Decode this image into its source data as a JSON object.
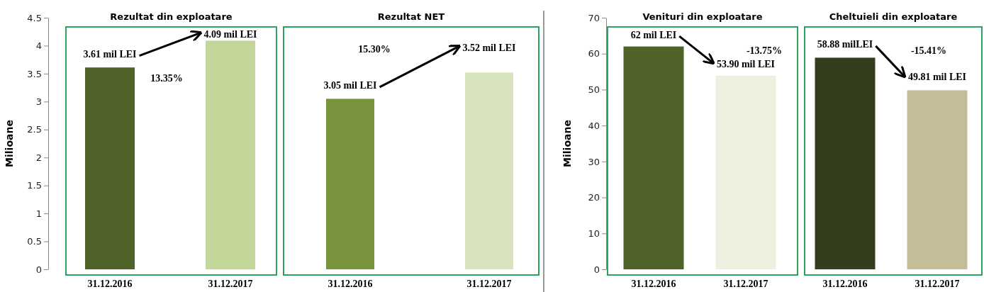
{
  "chart_data": [
    {
      "type": "bar",
      "title": "Rezultat din exploatare",
      "ylabel": "Milioane",
      "categories": [
        "31.12.2016",
        "31.12.2017"
      ],
      "values": [
        3.61,
        4.09
      ],
      "colors": [
        "#4f6228",
        "#c4d79b"
      ],
      "value_labels": [
        "3.61 mil LEI",
        "4.09 mil LEI"
      ],
      "ylim": [
        0,
        4.5
      ],
      "yticks": [
        0,
        0.5,
        1,
        1.5,
        2,
        2.5,
        3,
        3.5,
        4,
        4.5
      ],
      "annotations": [
        "13.35%"
      ]
    },
    {
      "type": "bar",
      "title": "Rezultat NET",
      "categories": [
        "31.12.2016",
        "31.12.2017"
      ],
      "values": [
        3.05,
        3.52
      ],
      "colors": [
        "#77933c",
        "#d7e4bd"
      ],
      "value_labels": [
        "3.05 mil LEI",
        "3.52 mil LEI"
      ],
      "ylim": [
        0,
        4.5
      ],
      "tick_labels": "x",
      "annotations": [
        "15.30%"
      ]
    },
    {
      "type": "bar",
      "title": "Venituri din exploatare",
      "ylabel": "Milioane",
      "categories": [
        "31.12.2016",
        "31.12.2017"
      ],
      "values": [
        62,
        53.9
      ],
      "colors": [
        "#4f6228",
        "#ebf1de"
      ],
      "value_labels": [
        "62 mil LEI",
        "53.90 mil LEI"
      ],
      "ylim": [
        0,
        70
      ],
      "yticks": [
        0,
        10,
        20,
        30,
        40,
        50,
        60,
        70
      ],
      "annotations": [
        "-13.75%"
      ]
    },
    {
      "type": "bar",
      "title": "Cheltuieli din exploatare",
      "categories": [
        "31.12.2016",
        "31.12.2017"
      ],
      "values": [
        58.88,
        49.81
      ],
      "colors": [
        "#333f1c",
        "#c4bd97"
      ],
      "value_labels": [
        "58.88 milLEI",
        "49.81 mil LEI"
      ],
      "ylim": [
        0,
        70
      ],
      "tick_labels": "x",
      "annotations": [
        "-15.41%"
      ]
    }
  ]
}
